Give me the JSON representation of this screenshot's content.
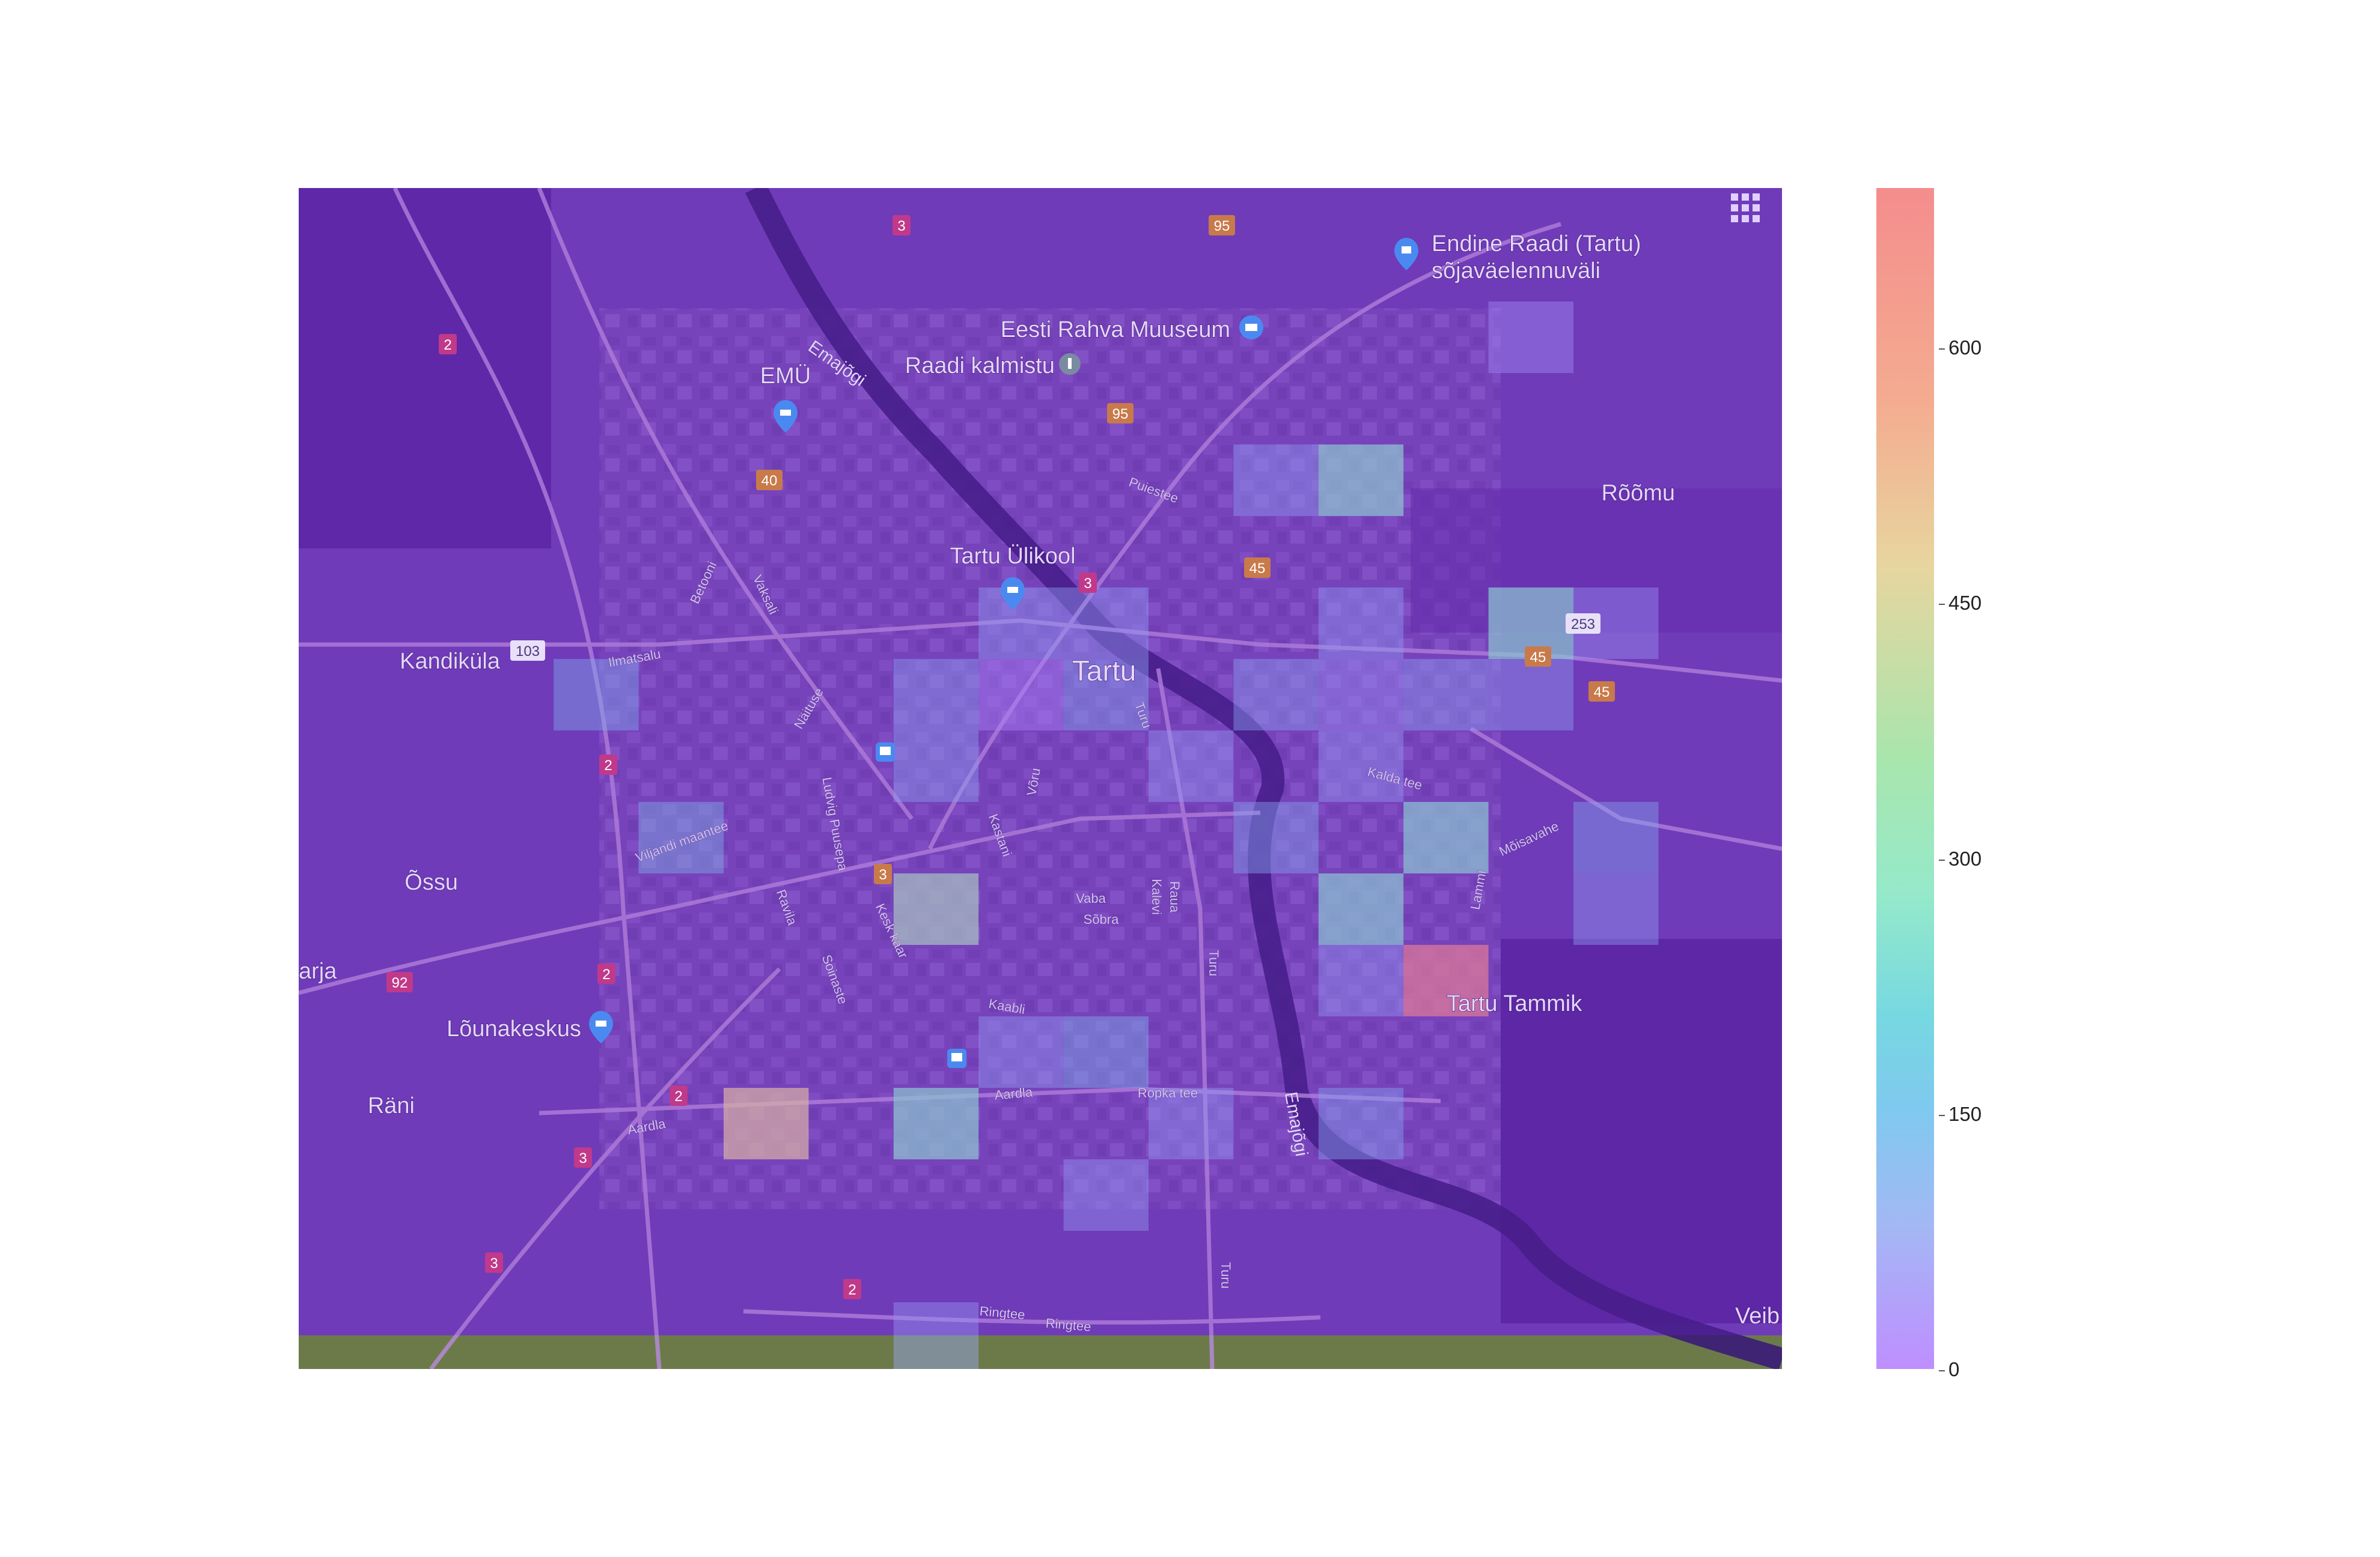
{
  "map": {
    "places": [
      {
        "id": "endine-raadi",
        "text": "Endine Raadi (Tartu)"
      },
      {
        "id": "endine-raadi-2",
        "text": "sõjaväelennuväli"
      },
      {
        "id": "eesti-rahva-muuseum",
        "text": "Eesti Rahva Muuseum"
      },
      {
        "id": "emu",
        "text": "EMÜ"
      },
      {
        "id": "raadi-kalmistu",
        "text": "Raadi kalmistu"
      },
      {
        "id": "emajogi-north",
        "text": "Emajõgi"
      },
      {
        "id": "roomu",
        "text": "Rõõmu"
      },
      {
        "id": "tartu-ulikool",
        "text": "Tartu Ülikool"
      },
      {
        "id": "tartu",
        "text": "Tartu"
      },
      {
        "id": "kandikula",
        "text": "Kandiküla"
      },
      {
        "id": "ossu",
        "text": "Õssu"
      },
      {
        "id": "lounakeskus",
        "text": "Lõunakeskus"
      },
      {
        "id": "rani",
        "text": "Räni"
      },
      {
        "id": "tartu-tammik",
        "text": "Tartu Tammik"
      },
      {
        "id": "emajogi-south",
        "text": "Emajõgi"
      },
      {
        "id": "veib",
        "text": "Veib"
      },
      {
        "id": "arja",
        "text": "arja"
      }
    ],
    "streets": [
      {
        "id": "puiestee",
        "text": "Puiestee"
      },
      {
        "id": "ilmatsalu",
        "text": "Ilmatsalu"
      },
      {
        "id": "betooni",
        "text": "Betooni"
      },
      {
        "id": "vaksali",
        "text": "Vaksali"
      },
      {
        "id": "naituse",
        "text": "Näituse"
      },
      {
        "id": "turu-north",
        "text": "Turu"
      },
      {
        "id": "viljandi",
        "text": "Viljandi maantee"
      },
      {
        "id": "ludvig",
        "text": "Ludvig Puusepa"
      },
      {
        "id": "kastani",
        "text": "Kastani"
      },
      {
        "id": "voru",
        "text": "Võru"
      },
      {
        "id": "raua",
        "text": "Raua"
      },
      {
        "id": "kalevi",
        "text": "Kalevi"
      },
      {
        "id": "vaba",
        "text": "Vaba"
      },
      {
        "id": "sobra",
        "text": "Sõbra"
      },
      {
        "id": "turu-mid",
        "text": "Turu"
      },
      {
        "id": "kesk-kaar",
        "text": "Kesk kaar"
      },
      {
        "id": "ravila",
        "text": "Ravila"
      },
      {
        "id": "soinaste",
        "text": "Soinaste"
      },
      {
        "id": "kaabli",
        "text": "Kaabli"
      },
      {
        "id": "aardla-west",
        "text": "Aardla"
      },
      {
        "id": "aardla-mid",
        "text": "Aardla"
      },
      {
        "id": "ropka",
        "text": "Ropka tee"
      },
      {
        "id": "kalda",
        "text": "Kalda tee"
      },
      {
        "id": "moisavahe",
        "text": "Mõisavahe"
      },
      {
        "id": "lammi",
        "text": "Lammi"
      },
      {
        "id": "turu-south",
        "text": "Turu"
      },
      {
        "id": "ringtee-1",
        "text": "Ringtee"
      },
      {
        "id": "ringtee-2",
        "text": "Ringtee"
      }
    ],
    "road_shields": [
      {
        "id": "r3-top",
        "text": "3",
        "kind": "pink"
      },
      {
        "id": "r95-top",
        "text": "95",
        "kind": "orange"
      },
      {
        "id": "r2-left",
        "text": "2",
        "kind": "pink"
      },
      {
        "id": "r95-mid",
        "text": "95",
        "kind": "orange"
      },
      {
        "id": "r40",
        "text": "40",
        "kind": "orange"
      },
      {
        "id": "r45-a",
        "text": "45",
        "kind": "orange"
      },
      {
        "id": "r3-mid",
        "text": "3",
        "kind": "pink"
      },
      {
        "id": "r103",
        "text": "103",
        "kind": "white"
      },
      {
        "id": "r253",
        "text": "253",
        "kind": "white"
      },
      {
        "id": "r45-b",
        "text": "45",
        "kind": "orange"
      },
      {
        "id": "r45-c",
        "text": "45",
        "kind": "orange"
      },
      {
        "id": "r2-mid",
        "text": "2",
        "kind": "pink"
      },
      {
        "id": "r3-center",
        "text": "3",
        "kind": "orange"
      },
      {
        "id": "r92",
        "text": "92",
        "kind": "pink"
      },
      {
        "id": "r2-lower",
        "text": "2",
        "kind": "pink"
      },
      {
        "id": "r2-lowest",
        "text": "2",
        "kind": "pink"
      },
      {
        "id": "r3-lower",
        "text": "3",
        "kind": "pink"
      },
      {
        "id": "r3-bottom",
        "text": "3",
        "kind": "pink"
      },
      {
        "id": "r2-bottom",
        "text": "2",
        "kind": "pink"
      }
    ],
    "colors": {
      "overlay": "#7a1fd6",
      "base": "#5a4a7a",
      "water": "#3a2a6a"
    }
  },
  "chart_data": {
    "type": "heatmap",
    "cmin": 0,
    "cmax": 700,
    "colorbar_ticks": [
      "0",
      "150",
      "300",
      "450",
      "600"
    ],
    "colorscale": [
      "#bb88ff",
      "#78c6ee",
      "#8fe8c8",
      "#e6d39a",
      "#f48787"
    ],
    "cells": [
      {
        "col": 11,
        "row": 3,
        "value": 120
      },
      {
        "col": 12,
        "row": 3,
        "value": 340
      },
      {
        "col": 14,
        "row": 1,
        "value": 60
      },
      {
        "col": 8,
        "row": 5,
        "value": 120
      },
      {
        "col": 9,
        "row": 5,
        "value": 110
      },
      {
        "col": 12,
        "row": 5,
        "value": 110
      },
      {
        "col": 14,
        "row": 5,
        "value": 330
      },
      {
        "col": 15,
        "row": 5,
        "value": 80
      },
      {
        "col": 3,
        "row": 6,
        "value": 160
      },
      {
        "col": 7,
        "row": 6,
        "value": 130
      },
      {
        "col": 8,
        "row": 6,
        "value": 30
      },
      {
        "col": 9,
        "row": 6,
        "value": 150
      },
      {
        "col": 11,
        "row": 6,
        "value": 130
      },
      {
        "col": 12,
        "row": 6,
        "value": 80
      },
      {
        "col": 13,
        "row": 6,
        "value": 130
      },
      {
        "col": 14,
        "row": 6,
        "value": 110
      },
      {
        "col": 7,
        "row": 7,
        "value": 130
      },
      {
        "col": 10,
        "row": 7,
        "value": 100
      },
      {
        "col": 12,
        "row": 7,
        "value": 100
      },
      {
        "col": 4,
        "row": 8,
        "value": 210
      },
      {
        "col": 11,
        "row": 8,
        "value": 150
      },
      {
        "col": 13,
        "row": 8,
        "value": 320
      },
      {
        "col": 15,
        "row": 8,
        "value": 150
      },
      {
        "col": 7,
        "row": 9,
        "value": 410
      },
      {
        "col": 12,
        "row": 9,
        "value": 320
      },
      {
        "col": 15,
        "row": 9,
        "value": 110
      },
      {
        "col": 13,
        "row": 10,
        "value": 690
      },
      {
        "col": 12,
        "row": 10,
        "value": 100
      },
      {
        "col": 8,
        "row": 11,
        "value": 110
      },
      {
        "col": 9,
        "row": 11,
        "value": 200
      },
      {
        "col": 5,
        "row": 12,
        "value": 540
      },
      {
        "col": 7,
        "row": 12,
        "value": 330
      },
      {
        "col": 10,
        "row": 12,
        "value": 100
      },
      {
        "col": 12,
        "row": 12,
        "value": 140
      },
      {
        "col": 9,
        "row": 13,
        "value": 100
      },
      {
        "col": 7,
        "row": 15,
        "value": 90
      }
    ]
  }
}
